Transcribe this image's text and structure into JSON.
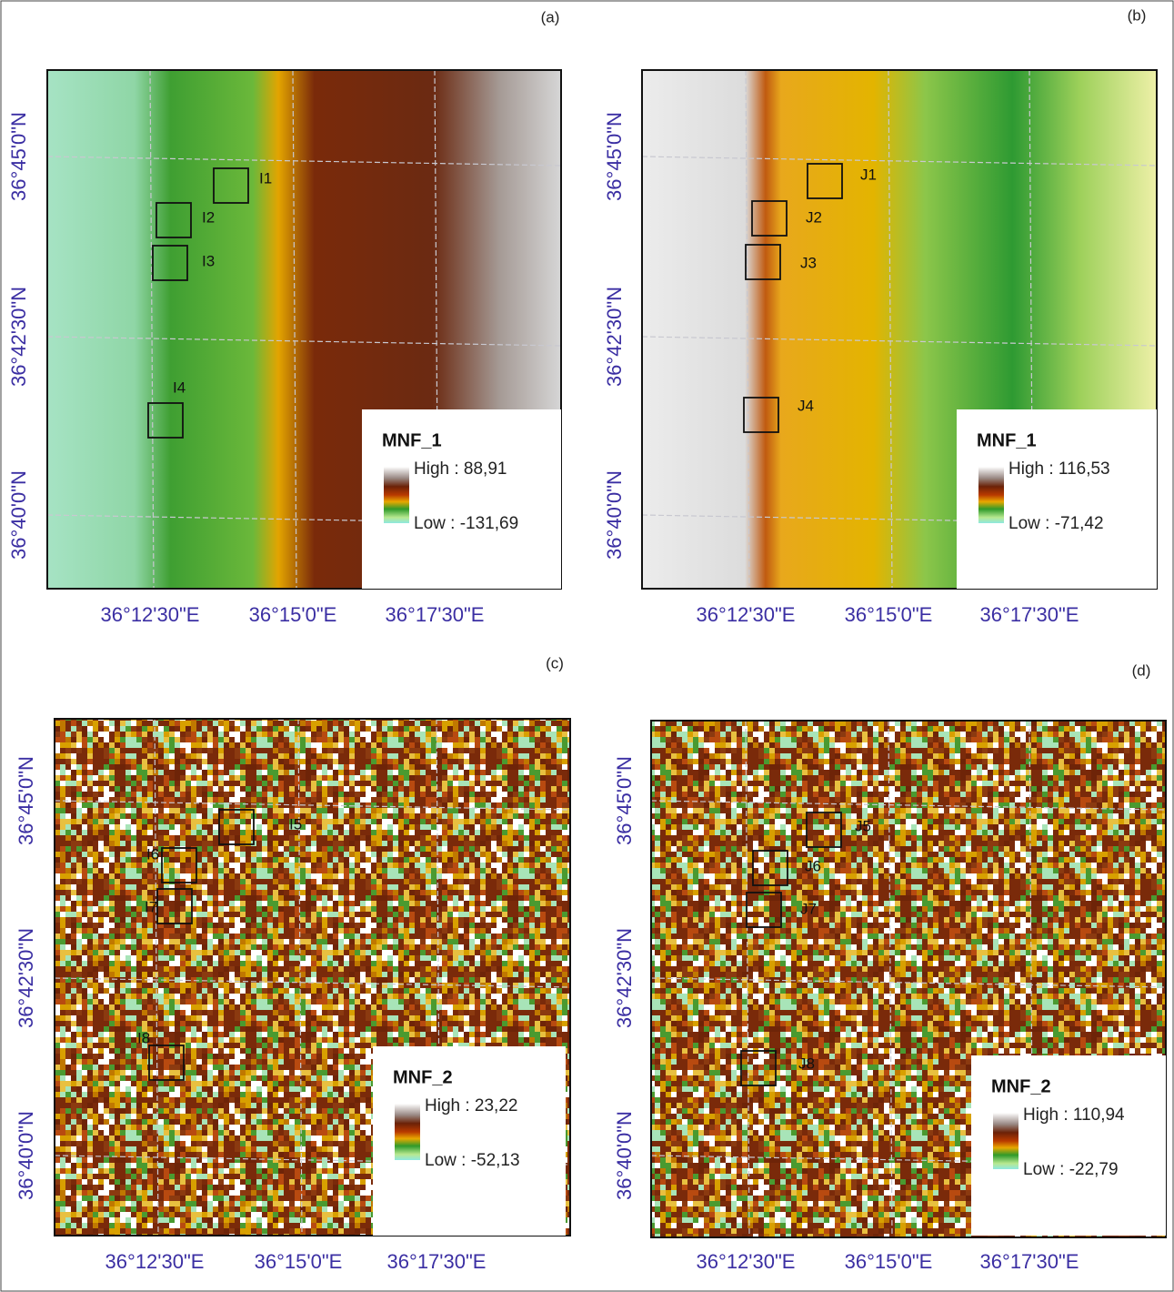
{
  "panels": [
    {
      "label": "(a)",
      "lat_labels": [
        "36°45'0\"N",
        "36°42'30\"N",
        "36°40'0\"N"
      ],
      "lon_labels": [
        "36°12'30\"E",
        "36°15'0\"E",
        "36°17'30\"E"
      ],
      "boxes": [
        "I1",
        "I2",
        "I3",
        "I4"
      ],
      "legend": {
        "title": "MNF_1",
        "high": "High : 88,91",
        "low": "Low : -131,69"
      }
    },
    {
      "label": "(b)",
      "lat_labels": [
        "36°45'0\"N",
        "36°42'30\"N",
        "36°40'0\"N"
      ],
      "lon_labels": [
        "36°12'30\"E",
        "36°15'0\"E",
        "36°17'30\"E"
      ],
      "boxes": [
        "J1",
        "J2",
        "J3",
        "J4"
      ],
      "legend": {
        "title": "MNF_1",
        "high": "High : 116,53",
        "low": "Low : -71,42"
      }
    },
    {
      "label": "(c)",
      "lat_labels": [
        "36°45'0\"N",
        "36°42'30\"N",
        "36°40'0\"N"
      ],
      "lon_labels": [
        "36°12'30\"E",
        "36°15'0\"E",
        "36°17'30\"E"
      ],
      "boxes": [
        "I5",
        "I6",
        "I7",
        "I8"
      ],
      "legend": {
        "title": "MNF_2",
        "high": "High : 23,22",
        "low": "Low : -52,13"
      }
    },
    {
      "label": "(d)",
      "lat_labels": [
        "36°45'0\"N",
        "36°42'30\"N",
        "36°40'0\"N"
      ],
      "lon_labels": [
        "36°12'30\"E",
        "36°15'0\"E",
        "36°17'30\"E"
      ],
      "boxes": [
        "J5",
        "J6",
        "J7",
        "J8"
      ],
      "legend": {
        "title": "MNF_2",
        "high": "High : 110,94",
        "low": "Low : -22,79"
      }
    }
  ]
}
